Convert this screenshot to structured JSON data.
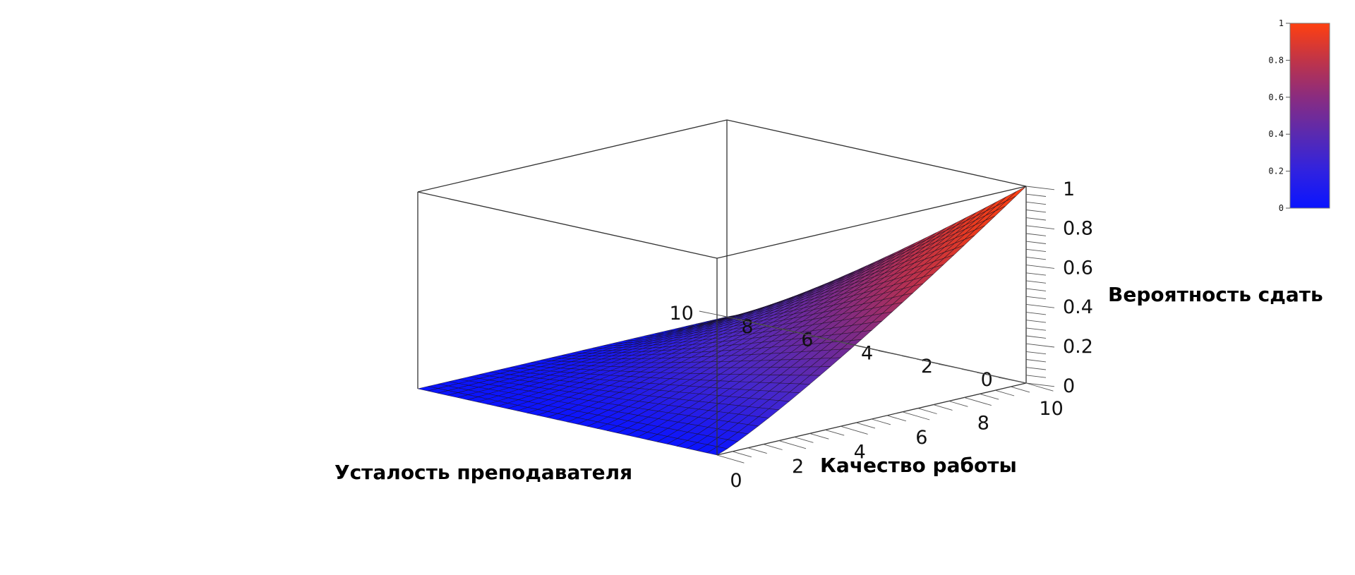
{
  "chart_data": {
    "type": "surface3d",
    "title": "",
    "x_axis": {
      "label": "Усталость преподавателя",
      "range": [
        0,
        10
      ],
      "ticks": [
        "0",
        "2",
        "4",
        "6",
        "8",
        "10"
      ]
    },
    "y_axis": {
      "label": "Качество работы",
      "range": [
        0,
        10
      ],
      "ticks": [
        "0",
        "2",
        "4",
        "6",
        "8",
        "10"
      ]
    },
    "z_axis": {
      "label": "Вероятность сдать",
      "range": [
        0,
        1
      ],
      "ticks": [
        "0",
        "0.2",
        "0.4",
        "0.6",
        "0.8",
        "1"
      ]
    },
    "surface": {
      "grid_steps": 30,
      "corner_values": {
        "x0_y0": 0,
        "x10_y0": 0,
        "x10_y10": 0,
        "x0_y10": 1
      },
      "shape": "z decreases smoothly from 1 at (x=0, y=10) to 0 along the x=10 and y=0 edges"
    },
    "colorbar": {
      "range": [
        0,
        1
      ],
      "ticks": [
        "0",
        "0.2",
        "0.4",
        "0.6",
        "0.8",
        "1"
      ],
      "colors": [
        "#0a14ff",
        "#4a28c8",
        "#7a2a8a",
        "#b83050",
        "#e83a20",
        "#ff4010"
      ]
    },
    "box": true,
    "grid": false
  }
}
